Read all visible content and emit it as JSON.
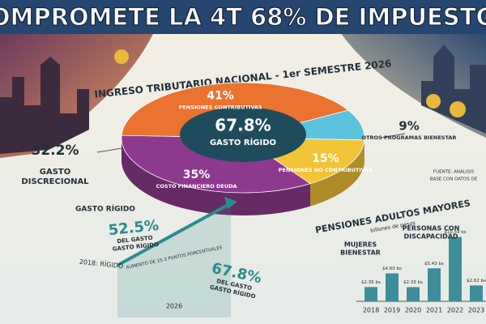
{
  "header": {
    "title": "OMPROMETE LA 4T 68% DE IMPUESTO"
  },
  "chart_data": [
    {
      "type": "pie",
      "title": "INGRESO TRIBUTARIO NACIONAL - 1er SEMESTRE 2026",
      "center_texts": [
        "67.8%",
        "GASTO RÍGIDO"
      ],
      "side_texts": [
        "32.2%",
        "GASTO",
        "DISCRECIONAL"
      ],
      "categories": [
        "OTROS PROGRAMAS BIENESTAR",
        "PENSIONES NO CONTRIBUTIVAS",
        "COSTO FINANCIERO DEUDA",
        "PENSIONES CONTRIBUTIVAS"
      ],
      "values": [
        9,
        15,
        35,
        41
      ],
      "value_labels": [
        "9%",
        "15%",
        "35%",
        "41%"
      ],
      "colors": [
        "#5cc3df",
        "#f2c437",
        "#8d3a8e",
        "#e9732f"
      ]
    },
    {
      "type": "bar",
      "title": "PENSIONES ADULTOS MAYORES",
      "subtitle": "billones de pesos",
      "categories": [
        "2018",
        "2019",
        "2020",
        "2021",
        "2022",
        "2023"
      ],
      "values": [
        2.35,
        4.6,
        2.33,
        5.43,
        10.59,
        2.62
      ],
      "value_labels": [
        "$2.35 bs",
        "$4.60 bs",
        "$2.33 bs",
        "$5.43 bs",
        "$10.59 bs",
        "$2.62 bs"
      ],
      "color": "#3f8d9b",
      "annotations": [
        [
          "MUJERES",
          "BIENESTAR"
        ],
        [
          "PERSONAS CON",
          "DISCAPACIDAD"
        ]
      ]
    },
    {
      "type": "line",
      "title": "GASTO RÍGIDO",
      "categories": [
        "2018: RÍGIDO",
        "2026"
      ],
      "values": [
        52.5,
        67.8
      ],
      "value_labels": [
        "52.5%",
        "67.8%"
      ],
      "value_notes": [
        [
          "DEL GASTO",
          "GASTO RÍGIDO"
        ],
        [
          "DEL GASTO",
          "GASTO RÍGIDO"
        ]
      ],
      "annotation": "AUMENTO DE 15.3 PUNTOS PORCENTUALES",
      "color": "#2b8b8c"
    }
  ],
  "source": [
    "FUENTE: ANÁLISIS",
    "BASE CON DATOS DE"
  ]
}
